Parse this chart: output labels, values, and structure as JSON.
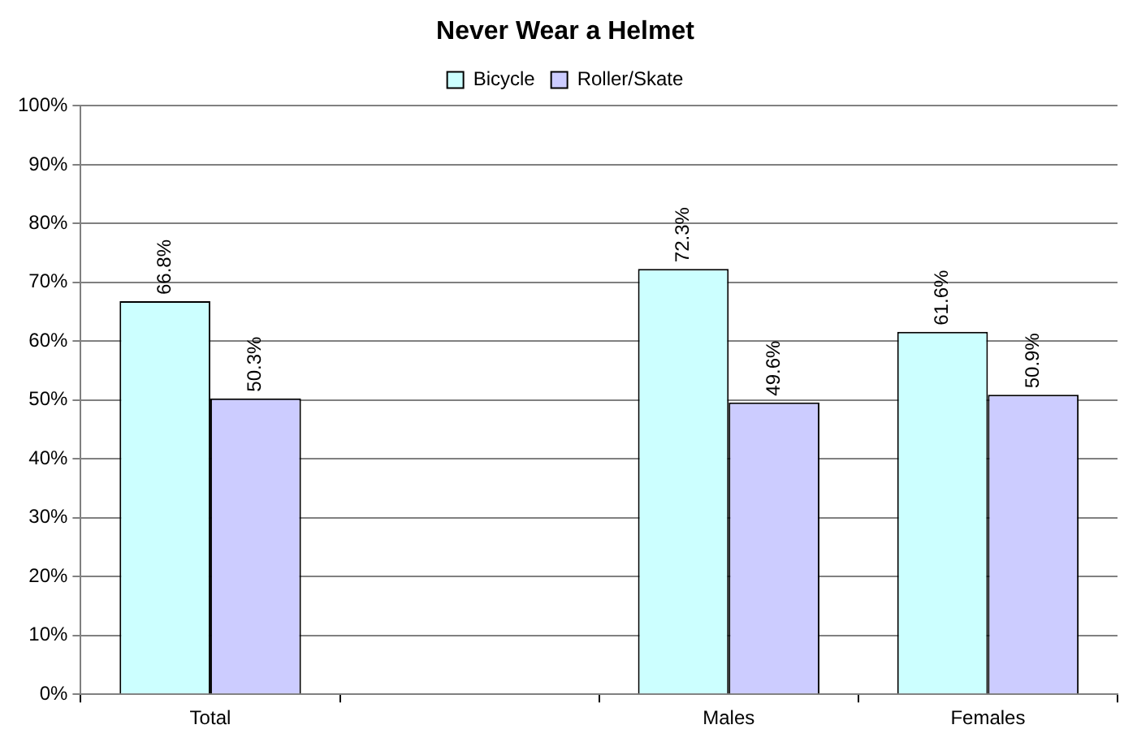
{
  "chart_data": {
    "type": "bar",
    "title": "Never Wear a Helmet",
    "categories": [
      "Total",
      null,
      "Males",
      "Females"
    ],
    "series": [
      {
        "name": "Bicycle",
        "color": "#ccffff",
        "values": [
          66.8,
          null,
          72.3,
          61.6
        ],
        "value_labels": [
          "66.8%",
          null,
          "72.3%",
          "61.6%"
        ]
      },
      {
        "name": "Roller/Skate",
        "color": "#ccccff",
        "values": [
          50.3,
          null,
          49.6,
          50.9
        ],
        "value_labels": [
          "50.3%",
          null,
          "49.6%",
          "50.9%"
        ]
      }
    ],
    "ylim": [
      0,
      100
    ],
    "yticks": [
      {
        "value": 0,
        "label": "0%"
      },
      {
        "value": 10,
        "label": "10%"
      },
      {
        "value": 20,
        "label": "20%"
      },
      {
        "value": 30,
        "label": "30%"
      },
      {
        "value": 40,
        "label": "40%"
      },
      {
        "value": 50,
        "label": "50%"
      },
      {
        "value": 60,
        "label": "60%"
      },
      {
        "value": 70,
        "label": "70%"
      },
      {
        "value": 80,
        "label": "80%"
      },
      {
        "value": 90,
        "label": "90%"
      },
      {
        "value": 100,
        "label": "100%"
      }
    ],
    "grid": "y",
    "legend": "top"
  }
}
